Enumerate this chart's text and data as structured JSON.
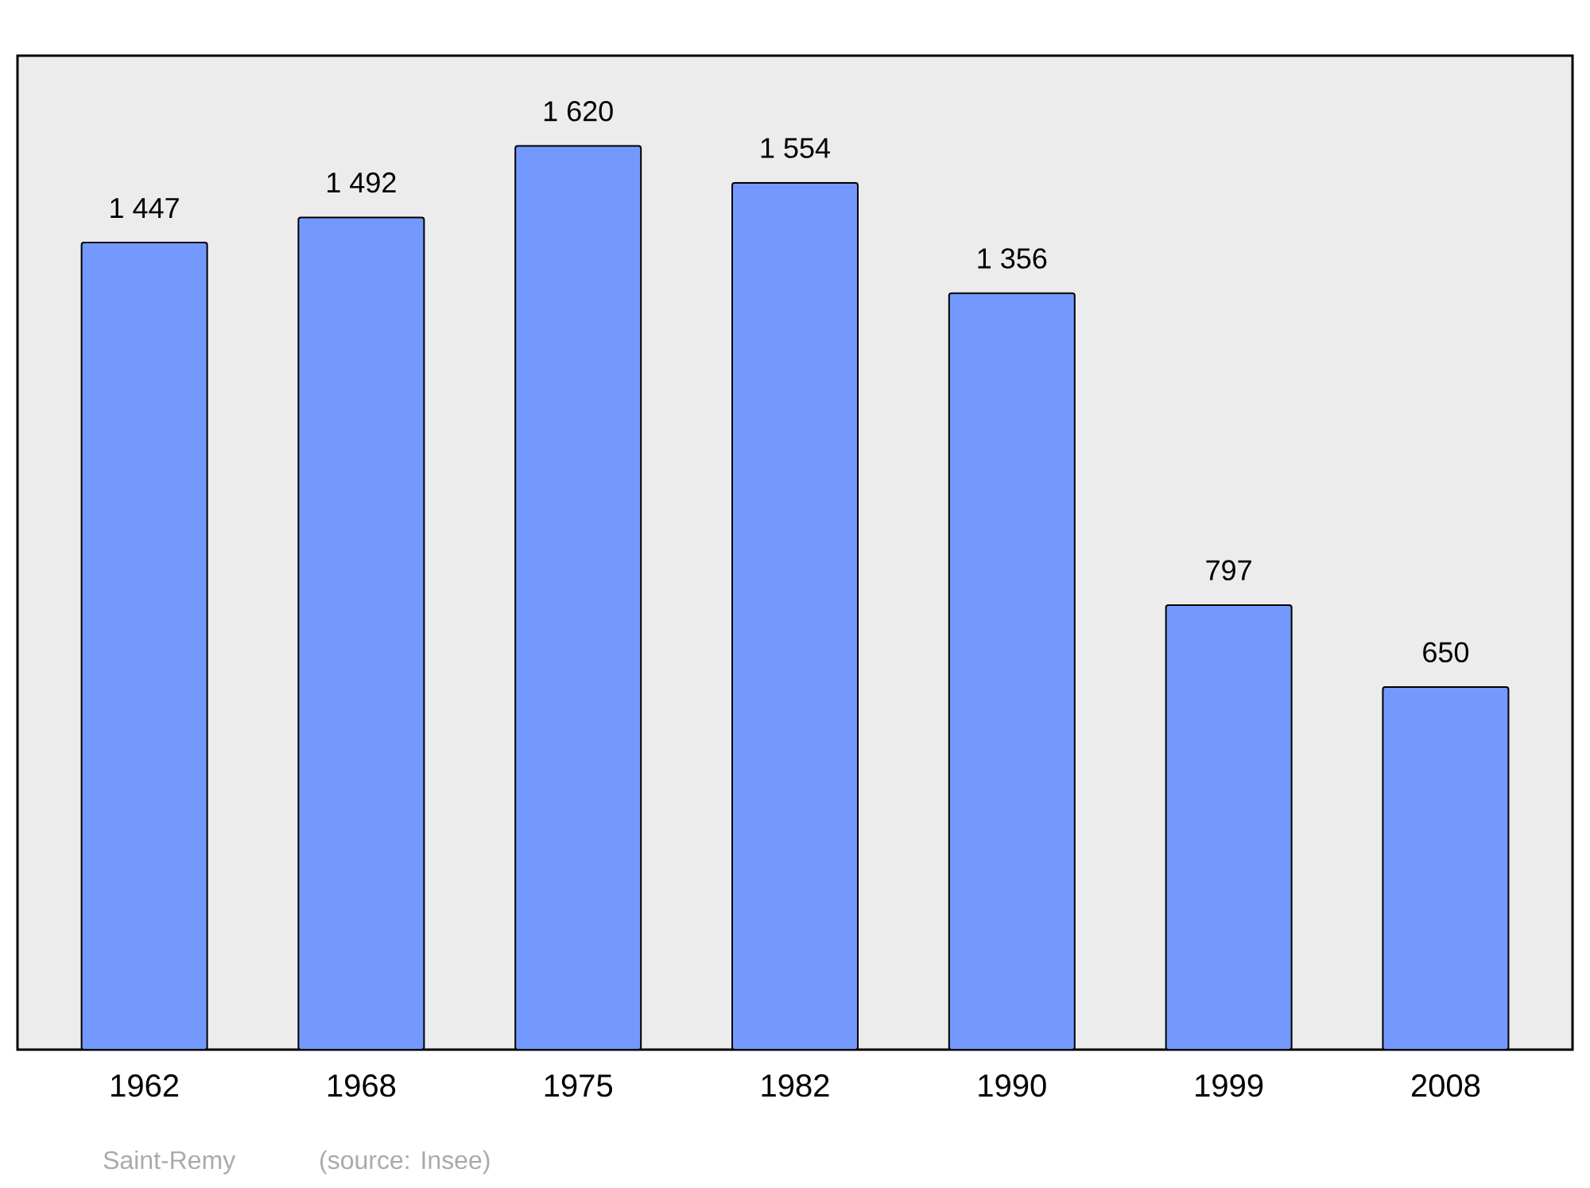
{
  "chart_data": {
    "type": "bar",
    "categories": [
      "1962",
      "1968",
      "1975",
      "1982",
      "1990",
      "1999",
      "2008"
    ],
    "values": [
      1447,
      1492,
      1620,
      1554,
      1356,
      797,
      650
    ],
    "value_labels": [
      "1 447",
      "1 492",
      "1 620",
      "1 554",
      "1 356",
      "797",
      "650"
    ],
    "color": "#7399ff",
    "annotations": [
      "Saint-Remy",
      "(source: Insee)"
    ]
  }
}
